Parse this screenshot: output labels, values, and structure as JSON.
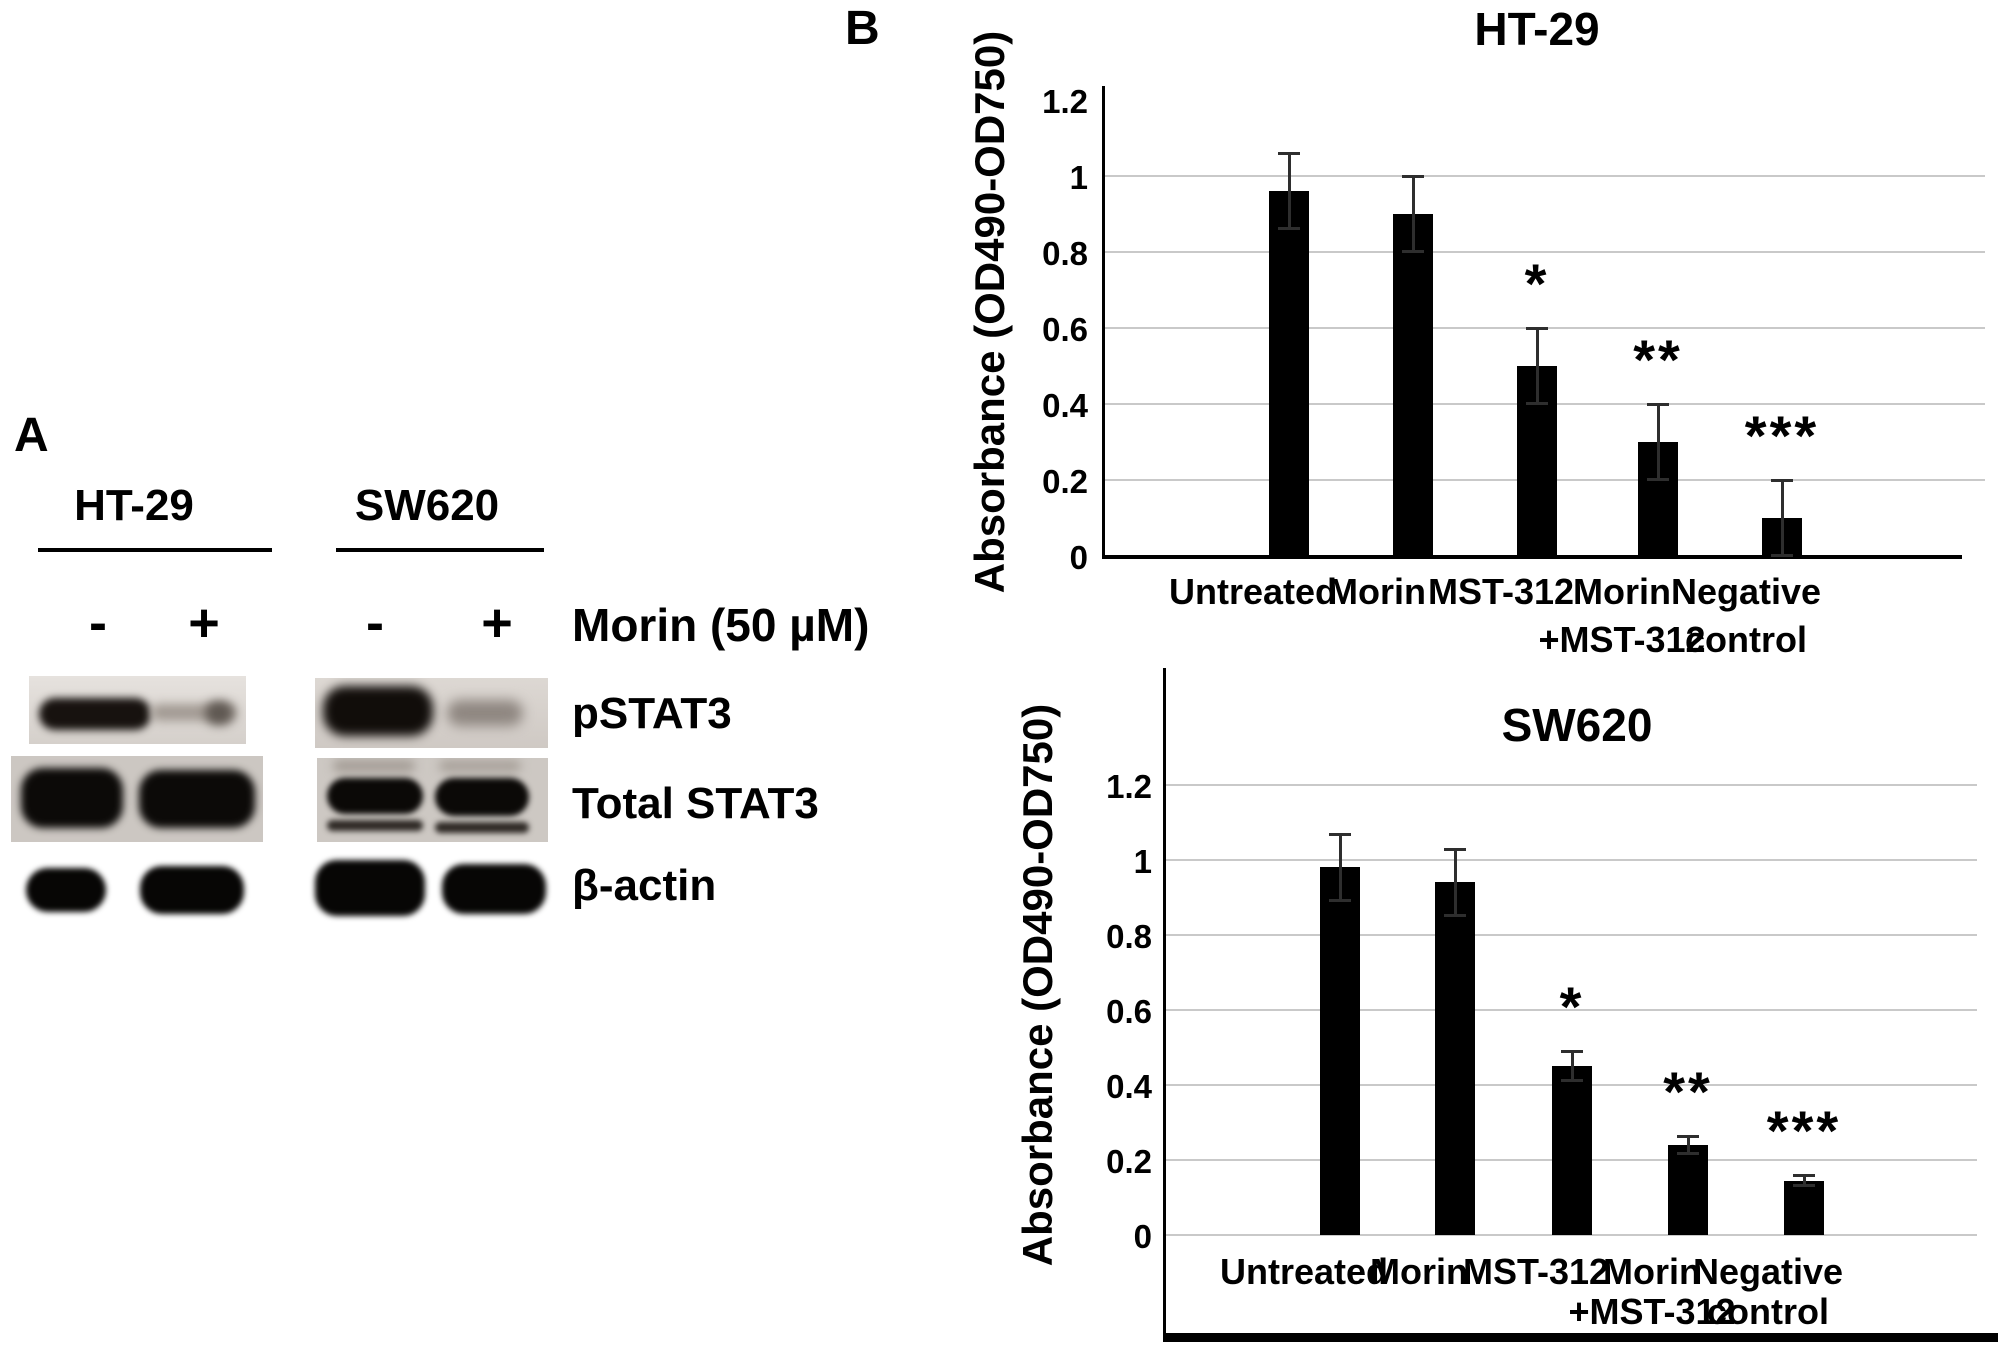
{
  "figure": {
    "panel_a_label": "A",
    "panel_b_label": "B"
  },
  "panel_a": {
    "cell_lines": [
      {
        "name": "HT-29",
        "lanes": [
          "-",
          "+"
        ]
      },
      {
        "name": "SW620",
        "lanes": [
          "-",
          "+"
        ]
      }
    ],
    "treatment_label": "Morin (50 µM)",
    "blot_rows": [
      "pSTAT3",
      "Total STAT3",
      "β-actin"
    ]
  },
  "chart_data": [
    {
      "type": "bar",
      "title": "HT-29",
      "xlabel": "",
      "ylabel": "Absorbance (OD490-OD750)",
      "categories": [
        "Untreated",
        "Morin",
        "MST-312",
        "Morin +MST-312",
        "Negative control"
      ],
      "category_line1": [
        "Untreated",
        "Morin",
        "MST-312",
        "Morin",
        "Negative"
      ],
      "category_line2": [
        "",
        "",
        "",
        "+MST-312",
        "control"
      ],
      "values": [
        0.96,
        0.9,
        0.5,
        0.3,
        0.1
      ],
      "errors": [
        0.1,
        0.1,
        0.1,
        0.1,
        0.1
      ],
      "annotations": [
        "",
        "",
        "*",
        "**",
        "***"
      ],
      "ylim": [
        0,
        1.2
      ],
      "ytick_step": 0.2,
      "ytick_labels": [
        "0",
        "0.2",
        "0.4",
        "0.6",
        "0.8",
        "1",
        "1.2"
      ],
      "grid": true,
      "legend": "none",
      "bar_color": "#000000"
    },
    {
      "type": "bar",
      "title": "SW620",
      "xlabel": "",
      "ylabel": "Absorbance (OD490-OD750)",
      "categories": [
        "Untreated",
        "Morin",
        "MST-312",
        "Morin +MST-312",
        "Negative control"
      ],
      "category_line1": [
        "Untreated",
        "Morin",
        "MST-312",
        "Morin",
        "Negative"
      ],
      "category_line2": [
        "",
        "",
        "",
        "+MST-312",
        "control"
      ],
      "values": [
        0.98,
        0.94,
        0.45,
        0.24,
        0.145
      ],
      "errors": [
        0.09,
        0.09,
        0.04,
        0.025,
        0.015
      ],
      "annotations": [
        "",
        "",
        "*",
        "**",
        "***"
      ],
      "ylim": [
        0,
        1.2
      ],
      "ytick_step": 0.2,
      "ytick_labels": [
        "0",
        "0.2",
        "0.4",
        "0.6",
        "0.8",
        "1",
        "1.2"
      ],
      "grid": true,
      "legend": "none",
      "bar_color": "#000000"
    }
  ]
}
